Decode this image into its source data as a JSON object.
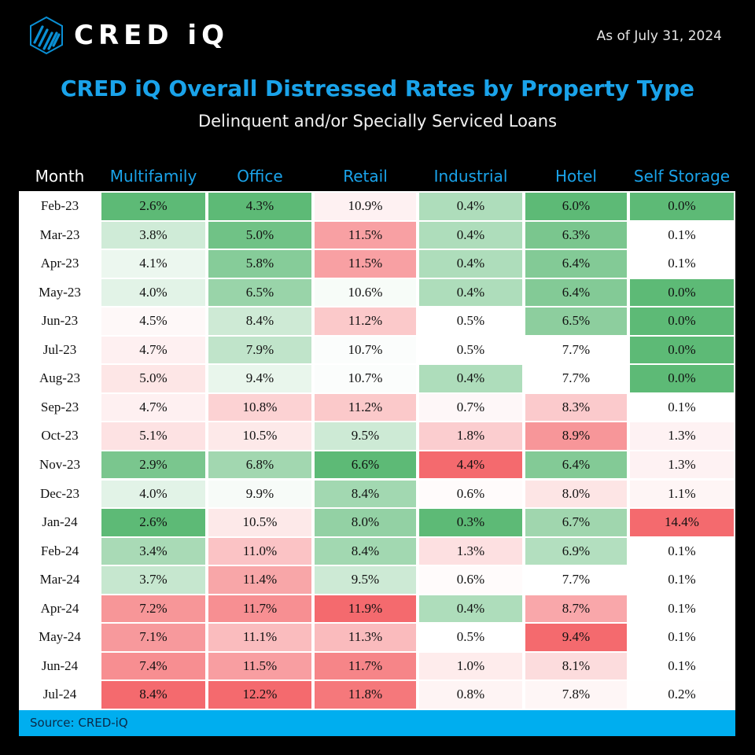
{
  "header": {
    "logo_text": "CRED iQ",
    "as_of": "As of July 31, 2024"
  },
  "colors": {
    "title": "#1aa3ea",
    "footer_bar": "#00aeef",
    "green_strong": "#5dba76",
    "red_strong": "#f46a6e",
    "neutral": "#ffffff"
  },
  "chart_data": {
    "type": "table",
    "title": "CRED iQ Overall Distressed Rates by Property Type",
    "subtitle": "Delinquent and/or Specially Serviced Loans",
    "row_header": "Month",
    "columns": [
      "Multifamily",
      "Office",
      "Retail",
      "Industrial",
      "Hotel",
      "Self Storage"
    ],
    "rows": [
      {
        "month": "Feb-23",
        "values": [
          "2.6%",
          "4.3%",
          "10.9%",
          "0.4%",
          "6.0%",
          "0.0%"
        ]
      },
      {
        "month": "Mar-23",
        "values": [
          "3.8%",
          "5.0%",
          "11.5%",
          "0.4%",
          "6.3%",
          "0.1%"
        ]
      },
      {
        "month": "Apr-23",
        "values": [
          "4.1%",
          "5.8%",
          "11.5%",
          "0.4%",
          "6.4%",
          "0.1%"
        ]
      },
      {
        "month": "May-23",
        "values": [
          "4.0%",
          "6.5%",
          "10.6%",
          "0.4%",
          "6.4%",
          "0.0%"
        ]
      },
      {
        "month": "Jun-23",
        "values": [
          "4.5%",
          "8.4%",
          "11.2%",
          "0.5%",
          "6.5%",
          "0.0%"
        ]
      },
      {
        "month": "Jul-23",
        "values": [
          "4.7%",
          "7.9%",
          "10.7%",
          "0.5%",
          "7.7%",
          "0.0%"
        ]
      },
      {
        "month": "Aug-23",
        "values": [
          "5.0%",
          "9.4%",
          "10.7%",
          "0.4%",
          "7.7%",
          "0.0%"
        ]
      },
      {
        "month": "Sep-23",
        "values": [
          "4.7%",
          "10.8%",
          "11.2%",
          "0.7%",
          "8.3%",
          "0.1%"
        ]
      },
      {
        "month": "Oct-23",
        "values": [
          "5.1%",
          "10.5%",
          "9.5%",
          "1.8%",
          "8.9%",
          "1.3%"
        ]
      },
      {
        "month": "Nov-23",
        "values": [
          "2.9%",
          "6.8%",
          "6.6%",
          "4.4%",
          "6.4%",
          "1.3%"
        ]
      },
      {
        "month": "Dec-23",
        "values": [
          "4.0%",
          "9.9%",
          "8.4%",
          "0.6%",
          "8.0%",
          "1.1%"
        ]
      },
      {
        "month": "Jan-24",
        "values": [
          "2.6%",
          "10.5%",
          "8.0%",
          "0.3%",
          "6.7%",
          "14.4%"
        ]
      },
      {
        "month": "Feb-24",
        "values": [
          "3.4%",
          "11.0%",
          "8.4%",
          "1.3%",
          "6.9%",
          "0.1%"
        ]
      },
      {
        "month": "Mar-24",
        "values": [
          "3.7%",
          "11.4%",
          "9.5%",
          "0.6%",
          "7.7%",
          "0.1%"
        ]
      },
      {
        "month": "Apr-24",
        "values": [
          "7.2%",
          "11.7%",
          "11.9%",
          "0.4%",
          "8.7%",
          "0.1%"
        ]
      },
      {
        "month": "May-24",
        "values": [
          "7.1%",
          "11.1%",
          "11.3%",
          "0.5%",
          "9.4%",
          "0.1%"
        ]
      },
      {
        "month": "Jun-24",
        "values": [
          "7.4%",
          "11.5%",
          "11.7%",
          "1.0%",
          "8.1%",
          "0.1%"
        ]
      },
      {
        "month": "Jul-24",
        "values": [
          "8.4%",
          "12.2%",
          "11.8%",
          "0.8%",
          "7.8%",
          "0.2%"
        ]
      }
    ]
  },
  "footer": {
    "source": "Source:  CRED-iQ"
  }
}
